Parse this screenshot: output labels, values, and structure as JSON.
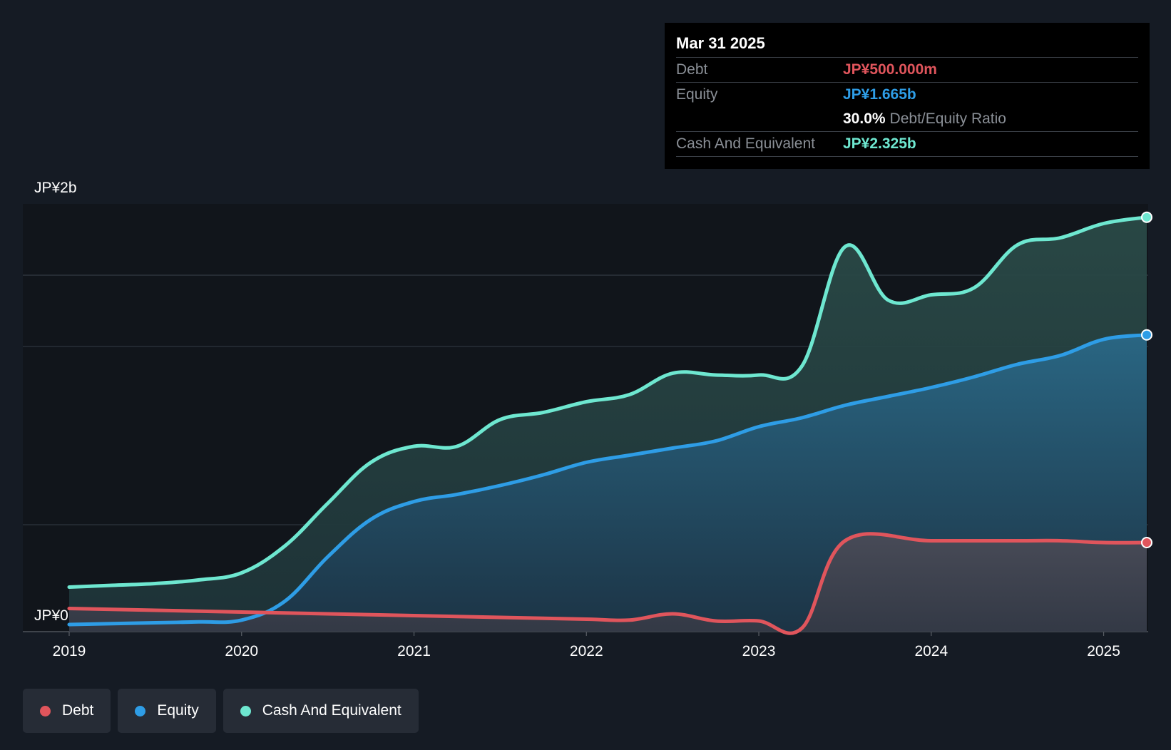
{
  "chart_data": {
    "type": "area",
    "x_tick_labels": [
      "2019",
      "2020",
      "2021",
      "2022",
      "2023",
      "2024",
      "2025"
    ],
    "y_labels": {
      "top": "JP¥2b",
      "bottom": "JP¥0"
    },
    "ylim": [
      0,
      2.4
    ],
    "xlim": [
      2019.0,
      2025.25
    ],
    "grid": true,
    "series": [
      {
        "name": "Cash And Equivalent",
        "color": "#6ee7d0",
        "points": [
          [
            2019.0,
            0.25
          ],
          [
            2019.25,
            0.26
          ],
          [
            2019.5,
            0.27
          ],
          [
            2019.75,
            0.29
          ],
          [
            2020.0,
            0.33
          ],
          [
            2020.25,
            0.48
          ],
          [
            2020.5,
            0.72
          ],
          [
            2020.75,
            0.95
          ],
          [
            2021.0,
            1.04
          ],
          [
            2021.25,
            1.04
          ],
          [
            2021.5,
            1.19
          ],
          [
            2021.75,
            1.23
          ],
          [
            2022.0,
            1.29
          ],
          [
            2022.25,
            1.33
          ],
          [
            2022.5,
            1.45
          ],
          [
            2022.75,
            1.44
          ],
          [
            2023.0,
            1.44
          ],
          [
            2023.25,
            1.49
          ],
          [
            2023.5,
            2.16
          ],
          [
            2023.75,
            1.86
          ],
          [
            2024.0,
            1.89
          ],
          [
            2024.25,
            1.93
          ],
          [
            2024.5,
            2.17
          ],
          [
            2024.75,
            2.21
          ],
          [
            2025.0,
            2.29
          ],
          [
            2025.25,
            2.325
          ]
        ]
      },
      {
        "name": "Equity",
        "color": "#2e9de6",
        "points": [
          [
            2019.0,
            0.04
          ],
          [
            2019.25,
            0.045
          ],
          [
            2019.5,
            0.05
          ],
          [
            2019.75,
            0.055
          ],
          [
            2020.0,
            0.065
          ],
          [
            2020.25,
            0.17
          ],
          [
            2020.5,
            0.42
          ],
          [
            2020.75,
            0.63
          ],
          [
            2021.0,
            0.73
          ],
          [
            2021.25,
            0.77
          ],
          [
            2021.5,
            0.82
          ],
          [
            2021.75,
            0.88
          ],
          [
            2022.0,
            0.95
          ],
          [
            2022.25,
            0.99
          ],
          [
            2022.5,
            1.03
          ],
          [
            2022.75,
            1.07
          ],
          [
            2023.0,
            1.15
          ],
          [
            2023.25,
            1.2
          ],
          [
            2023.5,
            1.27
          ],
          [
            2023.75,
            1.32
          ],
          [
            2024.0,
            1.37
          ],
          [
            2024.25,
            1.43
          ],
          [
            2024.5,
            1.5
          ],
          [
            2024.75,
            1.55
          ],
          [
            2025.0,
            1.64
          ],
          [
            2025.25,
            1.665
          ]
        ]
      },
      {
        "name": "Debt",
        "color": "#e0555c",
        "points": [
          [
            2019.0,
            0.13
          ],
          [
            2019.5,
            0.12
          ],
          [
            2020.0,
            0.11
          ],
          [
            2020.5,
            0.1
          ],
          [
            2021.0,
            0.09
          ],
          [
            2021.5,
            0.08
          ],
          [
            2022.0,
            0.07
          ],
          [
            2022.25,
            0.065
          ],
          [
            2022.5,
            0.1
          ],
          [
            2022.75,
            0.06
          ],
          [
            2023.0,
            0.06
          ],
          [
            2023.25,
            0.02
          ],
          [
            2023.5,
            0.51
          ],
          [
            2024.0,
            0.51
          ],
          [
            2024.5,
            0.51
          ],
          [
            2024.75,
            0.51
          ],
          [
            2025.0,
            0.5
          ],
          [
            2025.25,
            0.5
          ]
        ]
      }
    ]
  },
  "tooltip": {
    "date": "Mar 31 2025",
    "debt_label": "Debt",
    "debt_value": "JP¥500.000m",
    "equity_label": "Equity",
    "equity_value": "JP¥1.665b",
    "ratio_value": "30.0%",
    "ratio_label": "Debt/Equity Ratio",
    "cash_label": "Cash And Equivalent",
    "cash_value": "JP¥2.325b"
  },
  "legend": [
    {
      "label": "Debt",
      "color": "#e0555c"
    },
    {
      "label": "Equity",
      "color": "#2e9de6"
    },
    {
      "label": "Cash And Equivalent",
      "color": "#6ee7d0"
    }
  ],
  "colors": {
    "debt": "#e0555c",
    "equity": "#2e9de6",
    "cash": "#6ee7d0"
  }
}
